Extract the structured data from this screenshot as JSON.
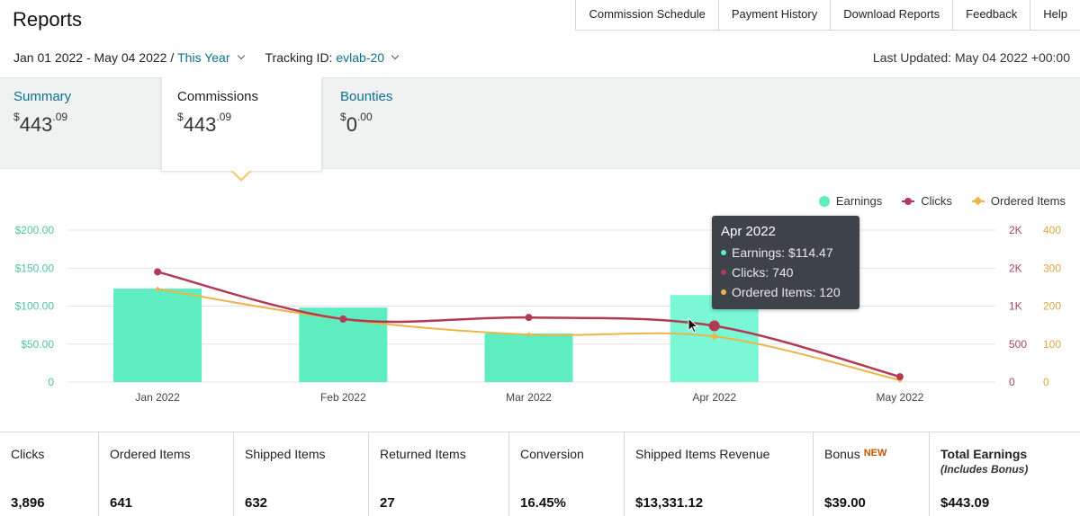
{
  "header": {
    "title": "Reports",
    "nav": [
      "Commission Schedule",
      "Payment History",
      "Download Reports",
      "Feedback",
      "Help"
    ]
  },
  "filters": {
    "date_range": "Jan 01 2022 - May 04 2022 /",
    "period": "This Year",
    "tracking_label": "Tracking ID:",
    "tracking_id": "evlab-20",
    "last_updated": "Last Updated: May 04 2022 +00:00"
  },
  "tabs": {
    "summary": {
      "label": "Summary",
      "currency": "$",
      "whole": "443",
      "cents": ".09"
    },
    "commissions": {
      "label": "Commissions",
      "currency": "$",
      "whole": "443",
      "cents": ".09"
    },
    "bounties": {
      "label": "Bounties",
      "currency": "$",
      "whole": "0",
      "cents": ".00"
    }
  },
  "legend": {
    "earnings": "Earnings",
    "clicks": "Clicks",
    "ordered": "Ordered Items"
  },
  "colors": {
    "earnings": "#5eedc0",
    "earnings_hover": "#7af7d5",
    "clicks": "#b33a55",
    "ordered": "#eab54a",
    "link": "#0e6f8e"
  },
  "tooltip": {
    "title": "Apr 2022",
    "earnings": "Earnings: $114.47",
    "clicks": "Clicks: 740",
    "ordered": "Ordered Items: 120"
  },
  "chart_data": {
    "type": "bar",
    "categories": [
      "Jan 2022",
      "Feb 2022",
      "Mar 2022",
      "Apr 2022",
      "May 2022"
    ],
    "series": [
      {
        "name": "Earnings",
        "type": "bar",
        "axis": "left",
        "values": [
          123,
          98,
          64,
          114.47,
          0
        ]
      },
      {
        "name": "Clicks",
        "type": "line",
        "axis": "right1",
        "values": [
          1450,
          830,
          850,
          740,
          70
        ]
      },
      {
        "name": "Ordered Items",
        "type": "line",
        "axis": "right2",
        "values": [
          245,
          165,
          125,
          120,
          5
        ]
      }
    ],
    "left_axis": {
      "ticks": [
        "$200.00",
        "$150.00",
        "$100.00",
        "$50.00",
        "0"
      ],
      "range": [
        0,
        200
      ]
    },
    "right_axis_1": {
      "ticks": [
        "2K",
        "2K",
        "1K",
        "500",
        "0"
      ],
      "range": [
        0,
        2000
      ]
    },
    "right_axis_2": {
      "ticks": [
        "400",
        "300",
        "200",
        "100",
        "0"
      ],
      "range": [
        0,
        400
      ]
    },
    "legend_position": "top-right",
    "grid": true
  },
  "stats": [
    {
      "label": "Clicks",
      "value": "3,896"
    },
    {
      "label": "Ordered Items",
      "value": "641"
    },
    {
      "label": "Shipped Items",
      "value": "632"
    },
    {
      "label": "Returned Items",
      "value": "27"
    },
    {
      "label": "Conversion",
      "value": "16.45%"
    },
    {
      "label": "Shipped Items Revenue",
      "value": "$13,331.12"
    },
    {
      "label": "Bonus",
      "badge": "NEW",
      "value": "$39.00"
    },
    {
      "label": "Total Earnings",
      "sub": "(Includes Bonus)",
      "value": "$443.09"
    }
  ]
}
